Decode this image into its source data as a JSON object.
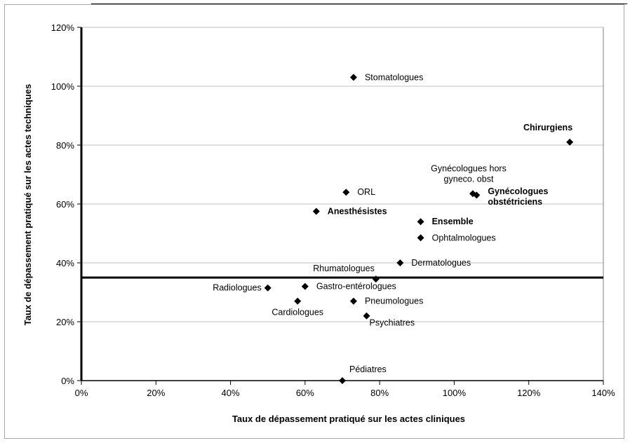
{
  "chart_data": {
    "type": "scatter",
    "title": "",
    "xlabel": "Taux de dépassement pratiqué sur les actes cliniques",
    "ylabel": "Taux de dépassement pratiqué sur les actes techniques",
    "xlim": [
      0,
      1.4
    ],
    "ylim": [
      0,
      1.2
    ],
    "x_ticks": [
      {
        "value": 0,
        "label": "0%"
      },
      {
        "value": 0.2,
        "label": "20%"
      },
      {
        "value": 0.4,
        "label": "40%"
      },
      {
        "value": 0.6,
        "label": "60%"
      },
      {
        "value": 0.8,
        "label": "80%"
      },
      {
        "value": 1.0,
        "label": "100%"
      },
      {
        "value": 1.2,
        "label": "120%"
      },
      {
        "value": 1.4,
        "label": "140%"
      }
    ],
    "y_ticks": [
      {
        "value": 0,
        "label": "0%"
      },
      {
        "value": 0.2,
        "label": "20%"
      },
      {
        "value": 0.4,
        "label": "40%"
      },
      {
        "value": 0.6,
        "label": "60%"
      },
      {
        "value": 0.8,
        "label": "80%"
      },
      {
        "value": 1.0,
        "label": "100%"
      },
      {
        "value": 1.2,
        "label": "120%"
      }
    ],
    "grid": "horizontal",
    "reference_line_y": 0.35,
    "points": [
      {
        "label": "Stomatologues",
        "x": 0.73,
        "y": 1.03,
        "bold": false,
        "anchor": "right"
      },
      {
        "label": "Chirurgiens",
        "x": 1.31,
        "y": 0.81,
        "bold": true,
        "anchor": "above-left"
      },
      {
        "label": "Gynécologues hors gyneco. obst",
        "x": 1.05,
        "y": 0.635,
        "bold": false,
        "anchor": "above-left",
        "lines": [
          "Gynécologues hors",
          "gyneco. obst"
        ]
      },
      {
        "label": "Gynécologues obstétriciens",
        "x": 1.06,
        "y": 0.63,
        "bold": true,
        "anchor": "right",
        "lines": [
          "Gynécologues",
          "obstétriciens"
        ]
      },
      {
        "label": "ORL",
        "x": 0.71,
        "y": 0.64,
        "bold": false,
        "anchor": "right"
      },
      {
        "label": "Anesthésistes",
        "x": 0.63,
        "y": 0.575,
        "bold": true,
        "anchor": "right"
      },
      {
        "label": "Ensemble",
        "x": 0.91,
        "y": 0.54,
        "bold": true,
        "anchor": "right"
      },
      {
        "label": "Ophtalmologues",
        "x": 0.91,
        "y": 0.485,
        "bold": false,
        "anchor": "right"
      },
      {
        "label": "Dermatologues",
        "x": 0.855,
        "y": 0.4,
        "bold": false,
        "anchor": "right"
      },
      {
        "label": "Rhumatologues",
        "x": 0.79,
        "y": 0.345,
        "bold": false,
        "anchor": "above-left"
      },
      {
        "label": "Radiologues",
        "x": 0.5,
        "y": 0.315,
        "bold": false,
        "anchor": "left"
      },
      {
        "label": "Gastro-entérologues",
        "x": 0.6,
        "y": 0.32,
        "bold": false,
        "anchor": "right"
      },
      {
        "label": "Cardiologues",
        "x": 0.58,
        "y": 0.27,
        "bold": false,
        "anchor": "below"
      },
      {
        "label": "Pneumologues",
        "x": 0.73,
        "y": 0.27,
        "bold": false,
        "anchor": "right"
      },
      {
        "label": "Psychiatres",
        "x": 0.765,
        "y": 0.22,
        "bold": false,
        "anchor": "below-right"
      },
      {
        "label": "Pédiatres",
        "x": 0.7,
        "y": 0.0,
        "bold": false,
        "anchor": "above-right"
      }
    ]
  }
}
